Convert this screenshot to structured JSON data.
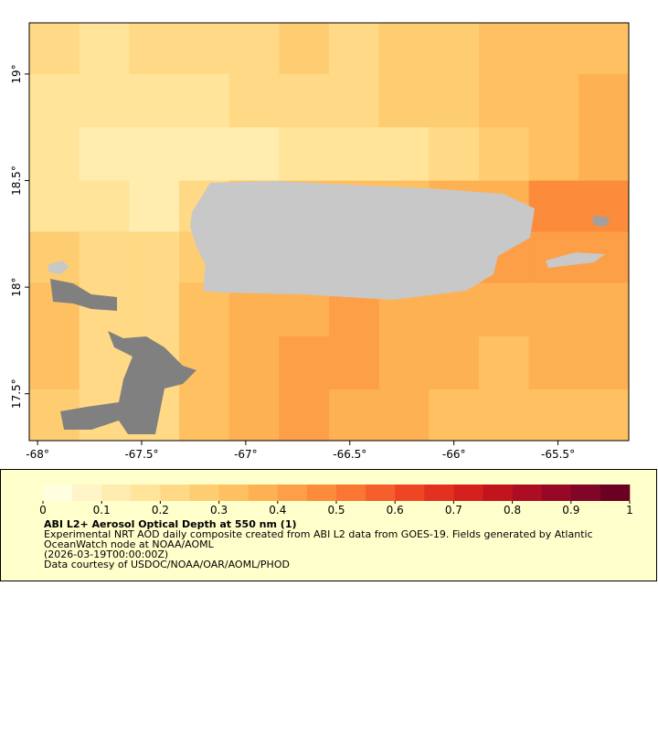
{
  "chart_data": {
    "type": "heatmap",
    "x_edges": [
      -68.04,
      -67.8,
      -67.56,
      -67.32,
      -67.08,
      -66.84,
      -66.6,
      -66.36,
      -66.12,
      -65.88,
      -65.64,
      -65.4,
      -65.16
    ],
    "y_edges": [
      19.24,
      19.0,
      18.75,
      18.5,
      18.26,
      18.02,
      17.77,
      17.52,
      17.28
    ],
    "values": [
      [
        0.2,
        0.18,
        0.2,
        0.22,
        0.22,
        0.25,
        0.22,
        0.25,
        0.28,
        0.3,
        0.32,
        0.3
      ],
      [
        0.18,
        0.15,
        0.15,
        0.18,
        0.2,
        0.2,
        0.22,
        0.25,
        0.25,
        0.3,
        0.32,
        0.35
      ],
      [
        0.15,
        0.12,
        0.12,
        0.12,
        0.14,
        0.15,
        0.16,
        0.18,
        0.2,
        0.25,
        0.32,
        0.38
      ],
      [
        0.18,
        0.15,
        0.12,
        0.2,
        0.3,
        0.3,
        0.3,
        0.3,
        0.35,
        0.38,
        0.45,
        0.45
      ],
      [
        0.25,
        0.2,
        0.2,
        0.25,
        0.3,
        0.3,
        0.3,
        0.3,
        0.35,
        0.4,
        0.4,
        0.4
      ],
      [
        0.3,
        0.22,
        0.2,
        0.3,
        0.35,
        0.38,
        0.4,
        0.38,
        0.35,
        0.35,
        0.38,
        0.35
      ],
      [
        0.3,
        0.2,
        0.2,
        0.3,
        0.38,
        0.42,
        0.4,
        0.38,
        0.35,
        0.32,
        0.35,
        0.35
      ],
      [
        0.28,
        0.2,
        0.2,
        0.3,
        0.35,
        0.4,
        0.38,
        0.35,
        0.32,
        0.3,
        0.32,
        0.32
      ]
    ],
    "xlim": [
      -68.04,
      -65.16
    ],
    "ylim": [
      17.28,
      19.24
    ],
    "xticks": [
      {
        "value": -68,
        "label": "-68°"
      },
      {
        "value": -67.5,
        "label": "-67.5°"
      },
      {
        "value": -67,
        "label": "-67°"
      },
      {
        "value": -66.5,
        "label": "-66.5°"
      },
      {
        "value": -66,
        "label": "-66°"
      },
      {
        "value": -65.5,
        "label": "-65.5°"
      }
    ],
    "yticks": [
      {
        "value": 17.5,
        "label": "17.5°"
      },
      {
        "value": 18,
        "label": "18°"
      },
      {
        "value": 18.5,
        "label": "18.5°"
      },
      {
        "value": 19,
        "label": "19°"
      }
    ],
    "colorbar": {
      "lim": [
        0,
        1
      ],
      "ticks": [
        0,
        0.1,
        0.2,
        0.3,
        0.4,
        0.5,
        0.6,
        0.7,
        0.8,
        0.9,
        1
      ],
      "colors": [
        "#ffffe0",
        "#fff5c8",
        "#ffedb0",
        "#ffe49a",
        "#ffd985",
        "#fecd72",
        "#fec061",
        "#fdb153",
        "#fd9f47",
        "#fc8b3c",
        "#fb7533",
        "#f65e2b",
        "#ee4625",
        "#e2321f",
        "#d4211d",
        "#c2141e",
        "#ad0d22",
        "#970826",
        "#800526",
        "#6a0022"
      ]
    },
    "title": "ABI L2+ Aerosol Optical Depth at 550 nm (1)",
    "description": [
      "Experimental NRT AOD daily composite created from ABI L2 data from GOES-19. Fields generated by Atlantic",
      "OceanWatch node at NOAA/AOML",
      "(2026-03-19T00:00:00Z)",
      "Data courtesy of USDOC/NOAA/OAR/AOML/PHOD"
    ]
  }
}
